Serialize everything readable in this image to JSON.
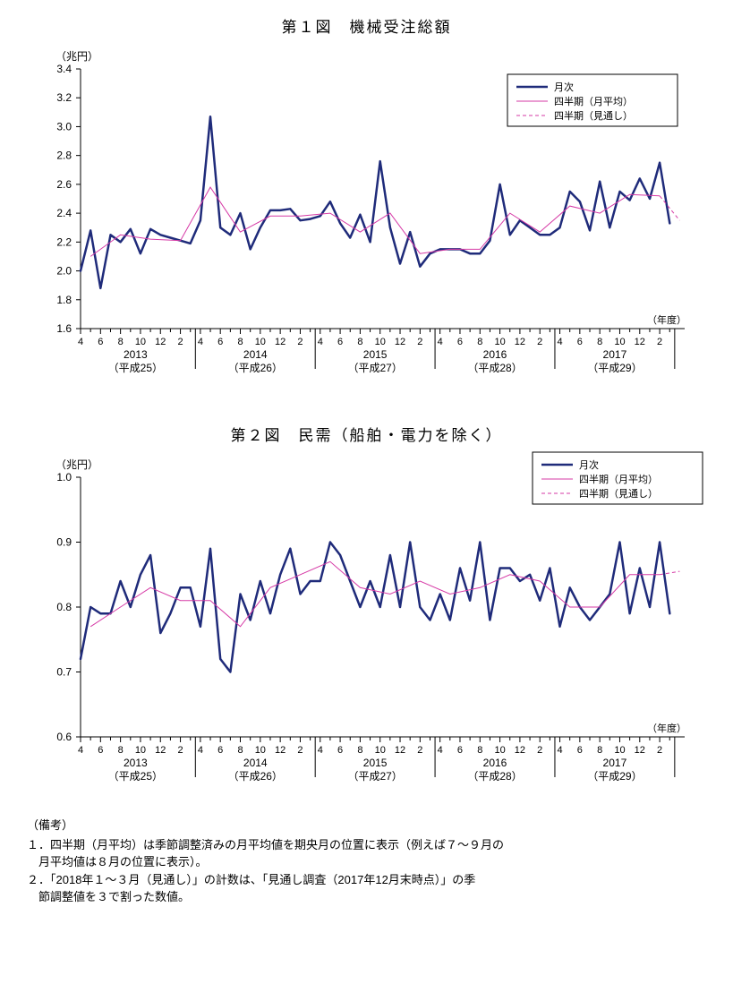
{
  "palette": {
    "bg": "#ffffff",
    "axis": "#000000",
    "grid": "#000000",
    "monthly": "#1f2b7a",
    "quarterly": "#d63aa6",
    "forecast": "#d63aa6",
    "legendBorder": "#000000"
  },
  "xaxis": {
    "months": [
      "4",
      "6",
      "8",
      "10",
      "12",
      "2"
    ],
    "years": [
      {
        "y": "2013",
        "era": "（平成25）"
      },
      {
        "y": "2014",
        "era": "（平成26）"
      },
      {
        "y": "2015",
        "era": "（平成27）"
      },
      {
        "y": "2016",
        "era": "（平成28）"
      },
      {
        "y": "2017",
        "era": "（平成29）"
      }
    ],
    "label": "（年度）"
  },
  "legend": {
    "items": [
      {
        "key": "monthly",
        "label": "月次"
      },
      {
        "key": "quarterly",
        "label": "四半期（月平均）"
      },
      {
        "key": "forecast",
        "label": "四半期（見通し）"
      }
    ]
  },
  "chart1": {
    "title": "第１図　機械受注総額",
    "yUnit": "（兆円）",
    "ymin": 1.6,
    "ymax": 3.4,
    "ytick_step": 0.2,
    "monthly_linewidth": 2.5,
    "quarterly_linewidth": 1.0,
    "forecast_dash": "4,3",
    "monthly": [
      2.0,
      2.28,
      1.88,
      2.25,
      2.2,
      2.29,
      2.12,
      2.29,
      2.25,
      2.23,
      2.21,
      2.19,
      2.35,
      3.07,
      2.3,
      2.25,
      2.4,
      2.15,
      2.3,
      2.42,
      2.42,
      2.43,
      2.35,
      2.36,
      2.38,
      2.48,
      2.33,
      2.23,
      2.39,
      2.2,
      2.76,
      2.3,
      2.05,
      2.27,
      2.03,
      2.12,
      2.15,
      2.15,
      2.15,
      2.12,
      2.12,
      2.21,
      2.6,
      2.25,
      2.35,
      2.3,
      2.25,
      2.25,
      2.3,
      2.55,
      2.48,
      2.28,
      2.62,
      2.3,
      2.55,
      2.49,
      2.64,
      2.5,
      2.75,
      2.33
    ],
    "quarterly": [
      {
        "i": 1,
        "v": 2.1
      },
      {
        "i": 4,
        "v": 2.25
      },
      {
        "i": 7,
        "v": 2.22
      },
      {
        "i": 10,
        "v": 2.21
      },
      {
        "i": 13,
        "v": 2.58
      },
      {
        "i": 16,
        "v": 2.27
      },
      {
        "i": 19,
        "v": 2.38
      },
      {
        "i": 22,
        "v": 2.38
      },
      {
        "i": 25,
        "v": 2.4
      },
      {
        "i": 28,
        "v": 2.27
      },
      {
        "i": 31,
        "v": 2.4
      },
      {
        "i": 34,
        "v": 2.12
      },
      {
        "i": 37,
        "v": 2.15
      },
      {
        "i": 40,
        "v": 2.15
      },
      {
        "i": 43,
        "v": 2.4
      },
      {
        "i": 46,
        "v": 2.27
      },
      {
        "i": 49,
        "v": 2.45
      },
      {
        "i": 52,
        "v": 2.4
      },
      {
        "i": 55,
        "v": 2.53
      },
      {
        "i": 58,
        "v": 2.52
      }
    ],
    "forecast": [
      {
        "i": 58,
        "v": 2.52
      },
      {
        "i": 60,
        "v": 2.35
      }
    ]
  },
  "chart2": {
    "title": "第２図　民需（船舶・電力を除く）",
    "yUnit": "（兆円）",
    "ymin": 0.6,
    "ymax": 1.0,
    "ytick_step": 0.1,
    "monthly_linewidth": 2.5,
    "quarterly_linewidth": 1.0,
    "forecast_dash": "4,3",
    "monthly": [
      0.72,
      0.8,
      0.79,
      0.79,
      0.84,
      0.8,
      0.85,
      0.88,
      0.76,
      0.79,
      0.83,
      0.83,
      0.77,
      0.89,
      0.72,
      0.7,
      0.82,
      0.78,
      0.84,
      0.79,
      0.85,
      0.89,
      0.82,
      0.84,
      0.84,
      0.9,
      0.88,
      0.84,
      0.8,
      0.84,
      0.8,
      0.88,
      0.8,
      0.9,
      0.8,
      0.78,
      0.82,
      0.78,
      0.86,
      0.81,
      0.9,
      0.78,
      0.86,
      0.86,
      0.84,
      0.85,
      0.81,
      0.86,
      0.77,
      0.83,
      0.8,
      0.78,
      0.8,
      0.82,
      0.9,
      0.79,
      0.86,
      0.8,
      0.9,
      0.79
    ],
    "quarterly": [
      {
        "i": 1,
        "v": 0.77
      },
      {
        "i": 4,
        "v": 0.8
      },
      {
        "i": 7,
        "v": 0.83
      },
      {
        "i": 10,
        "v": 0.81
      },
      {
        "i": 13,
        "v": 0.81
      },
      {
        "i": 16,
        "v": 0.77
      },
      {
        "i": 19,
        "v": 0.83
      },
      {
        "i": 22,
        "v": 0.85
      },
      {
        "i": 25,
        "v": 0.87
      },
      {
        "i": 28,
        "v": 0.83
      },
      {
        "i": 31,
        "v": 0.82
      },
      {
        "i": 34,
        "v": 0.84
      },
      {
        "i": 37,
        "v": 0.82
      },
      {
        "i": 40,
        "v": 0.83
      },
      {
        "i": 43,
        "v": 0.85
      },
      {
        "i": 46,
        "v": 0.84
      },
      {
        "i": 49,
        "v": 0.8
      },
      {
        "i": 52,
        "v": 0.8
      },
      {
        "i": 55,
        "v": 0.85
      },
      {
        "i": 58,
        "v": 0.85
      }
    ],
    "forecast": [
      {
        "i": 58,
        "v": 0.85
      },
      {
        "i": 60,
        "v": 0.855
      }
    ]
  },
  "remarks": {
    "head": "（備考）",
    "lines": [
      "１．四半期（月平均）は季節調整済みの月平均値を期央月の位置に表示（例えば７～９月の",
      "　月平均値は８月の位置に表示）。",
      "２．「2018年１～３月（見通し）」の計数は、「見通し調査（2017年12月末時点）」の季",
      "　節調整値を３で割った数値。"
    ]
  }
}
